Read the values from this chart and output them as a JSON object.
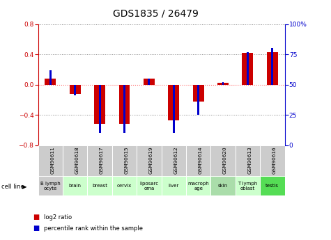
{
  "title": "GDS1835 / 26479",
  "samples": [
    "GSM90611",
    "GSM90618",
    "GSM90617",
    "GSM90615",
    "GSM90619",
    "GSM90612",
    "GSM90614",
    "GSM90620",
    "GSM90613",
    "GSM90616"
  ],
  "cell_lines": [
    "B lymph\nocyte",
    "brain",
    "breast",
    "cervix",
    "liposarc\noma",
    "liver",
    "macroph\nage",
    "skin",
    "T lymph\noblast",
    "testis"
  ],
  "cell_bg_colors": [
    "#cccccc",
    "#ccffcc",
    "#ccffcc",
    "#ccffcc",
    "#ccffcc",
    "#ccffcc",
    "#ccffcc",
    "#aaddaa",
    "#ccffcc",
    "#55dd55"
  ],
  "gsm_bg_color": "#cccccc",
  "log2_ratio": [
    0.08,
    -0.12,
    -0.52,
    -0.52,
    0.08,
    -0.47,
    -0.22,
    0.02,
    0.42,
    0.43
  ],
  "percentile_rank": [
    62,
    41,
    10,
    10,
    55,
    10,
    25,
    52,
    77,
    80
  ],
  "ylim_left": [
    -0.8,
    0.8
  ],
  "ylim_right": [
    0,
    100
  ],
  "bar_color_red": "#cc0000",
  "bar_color_blue": "#0000cc",
  "dotted_color": "#888888",
  "zero_line_color": "#ff6666",
  "title_fontsize": 10,
  "tick_fontsize": 6.5,
  "label_fontsize": 6
}
